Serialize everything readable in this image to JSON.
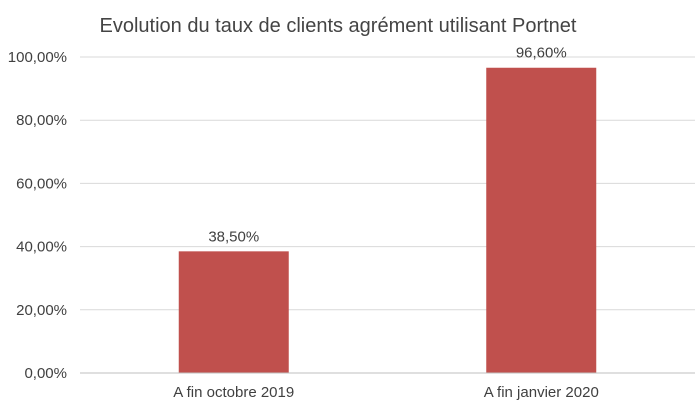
{
  "chart_data": {
    "type": "bar",
    "title": "Evolution du taux de clients agrément utilisant  Portnet",
    "xlabel": "",
    "ylabel": "",
    "categories": [
      "A fin octobre 2019",
      "A fin janvier 2020"
    ],
    "values": [
      38.5,
      96.6
    ],
    "data_labels": [
      "38,50%",
      "96,60%"
    ],
    "ylim": [
      0,
      100
    ],
    "yticks": [
      0,
      20,
      40,
      60,
      80,
      100
    ],
    "ytick_labels": [
      "0,00%",
      "20,00%",
      "40,00%",
      "60,00%",
      "80,00%",
      "100,00%"
    ],
    "grid": true,
    "legend": "none",
    "bar_color": "#c0504d"
  }
}
